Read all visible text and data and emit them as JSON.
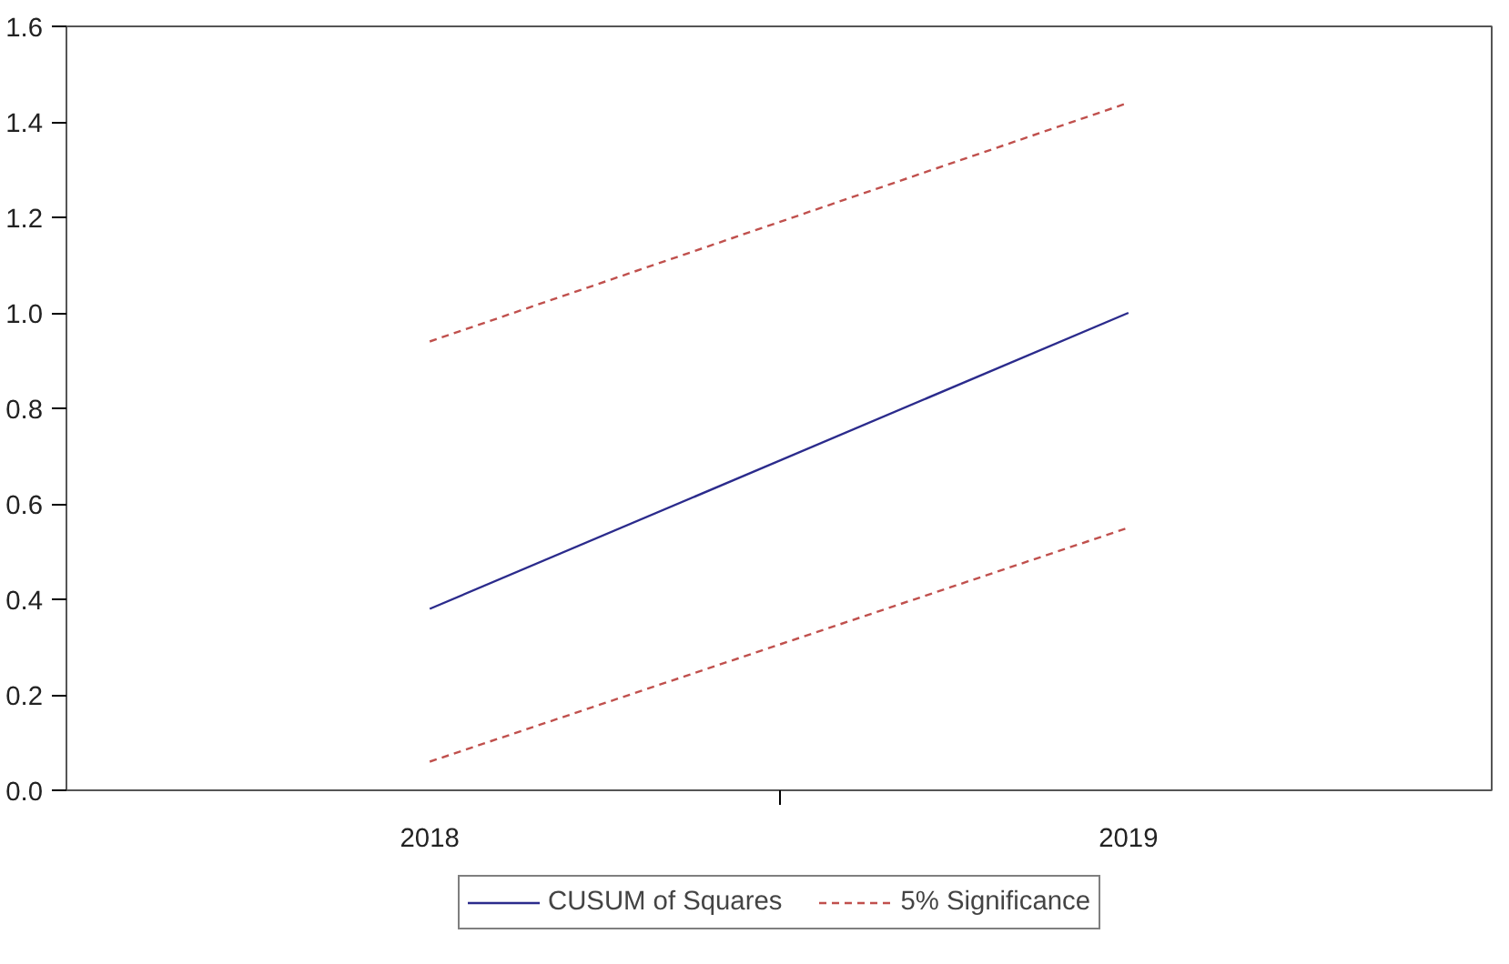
{
  "chart_data": {
    "type": "line",
    "categories": [
      "2018",
      "2019"
    ],
    "series": [
      {
        "name": "CUSUM of Squares",
        "color": "#2b2b8c",
        "values": [
          0.38,
          1.0
        ],
        "line_style": "solid"
      },
      {
        "name": "5% Significance",
        "color": "#c0504d",
        "values": [
          0.94,
          1.44
        ],
        "line_style": "dashed"
      },
      {
        "color": "#c0504d",
        "values": [
          0.06,
          0.55
        ],
        "line_style": "dashed"
      }
    ],
    "ylim": [
      0,
      1.6
    ],
    "yticks": [
      {
        "value": 0,
        "label": "0.0"
      },
      0.2,
      0.4,
      0.6,
      0.8,
      {
        "value": 1,
        "label": "1.0"
      },
      1.2,
      1.4,
      1.6
    ],
    "grid": false,
    "legend": "bottom",
    "marker": "none"
  }
}
